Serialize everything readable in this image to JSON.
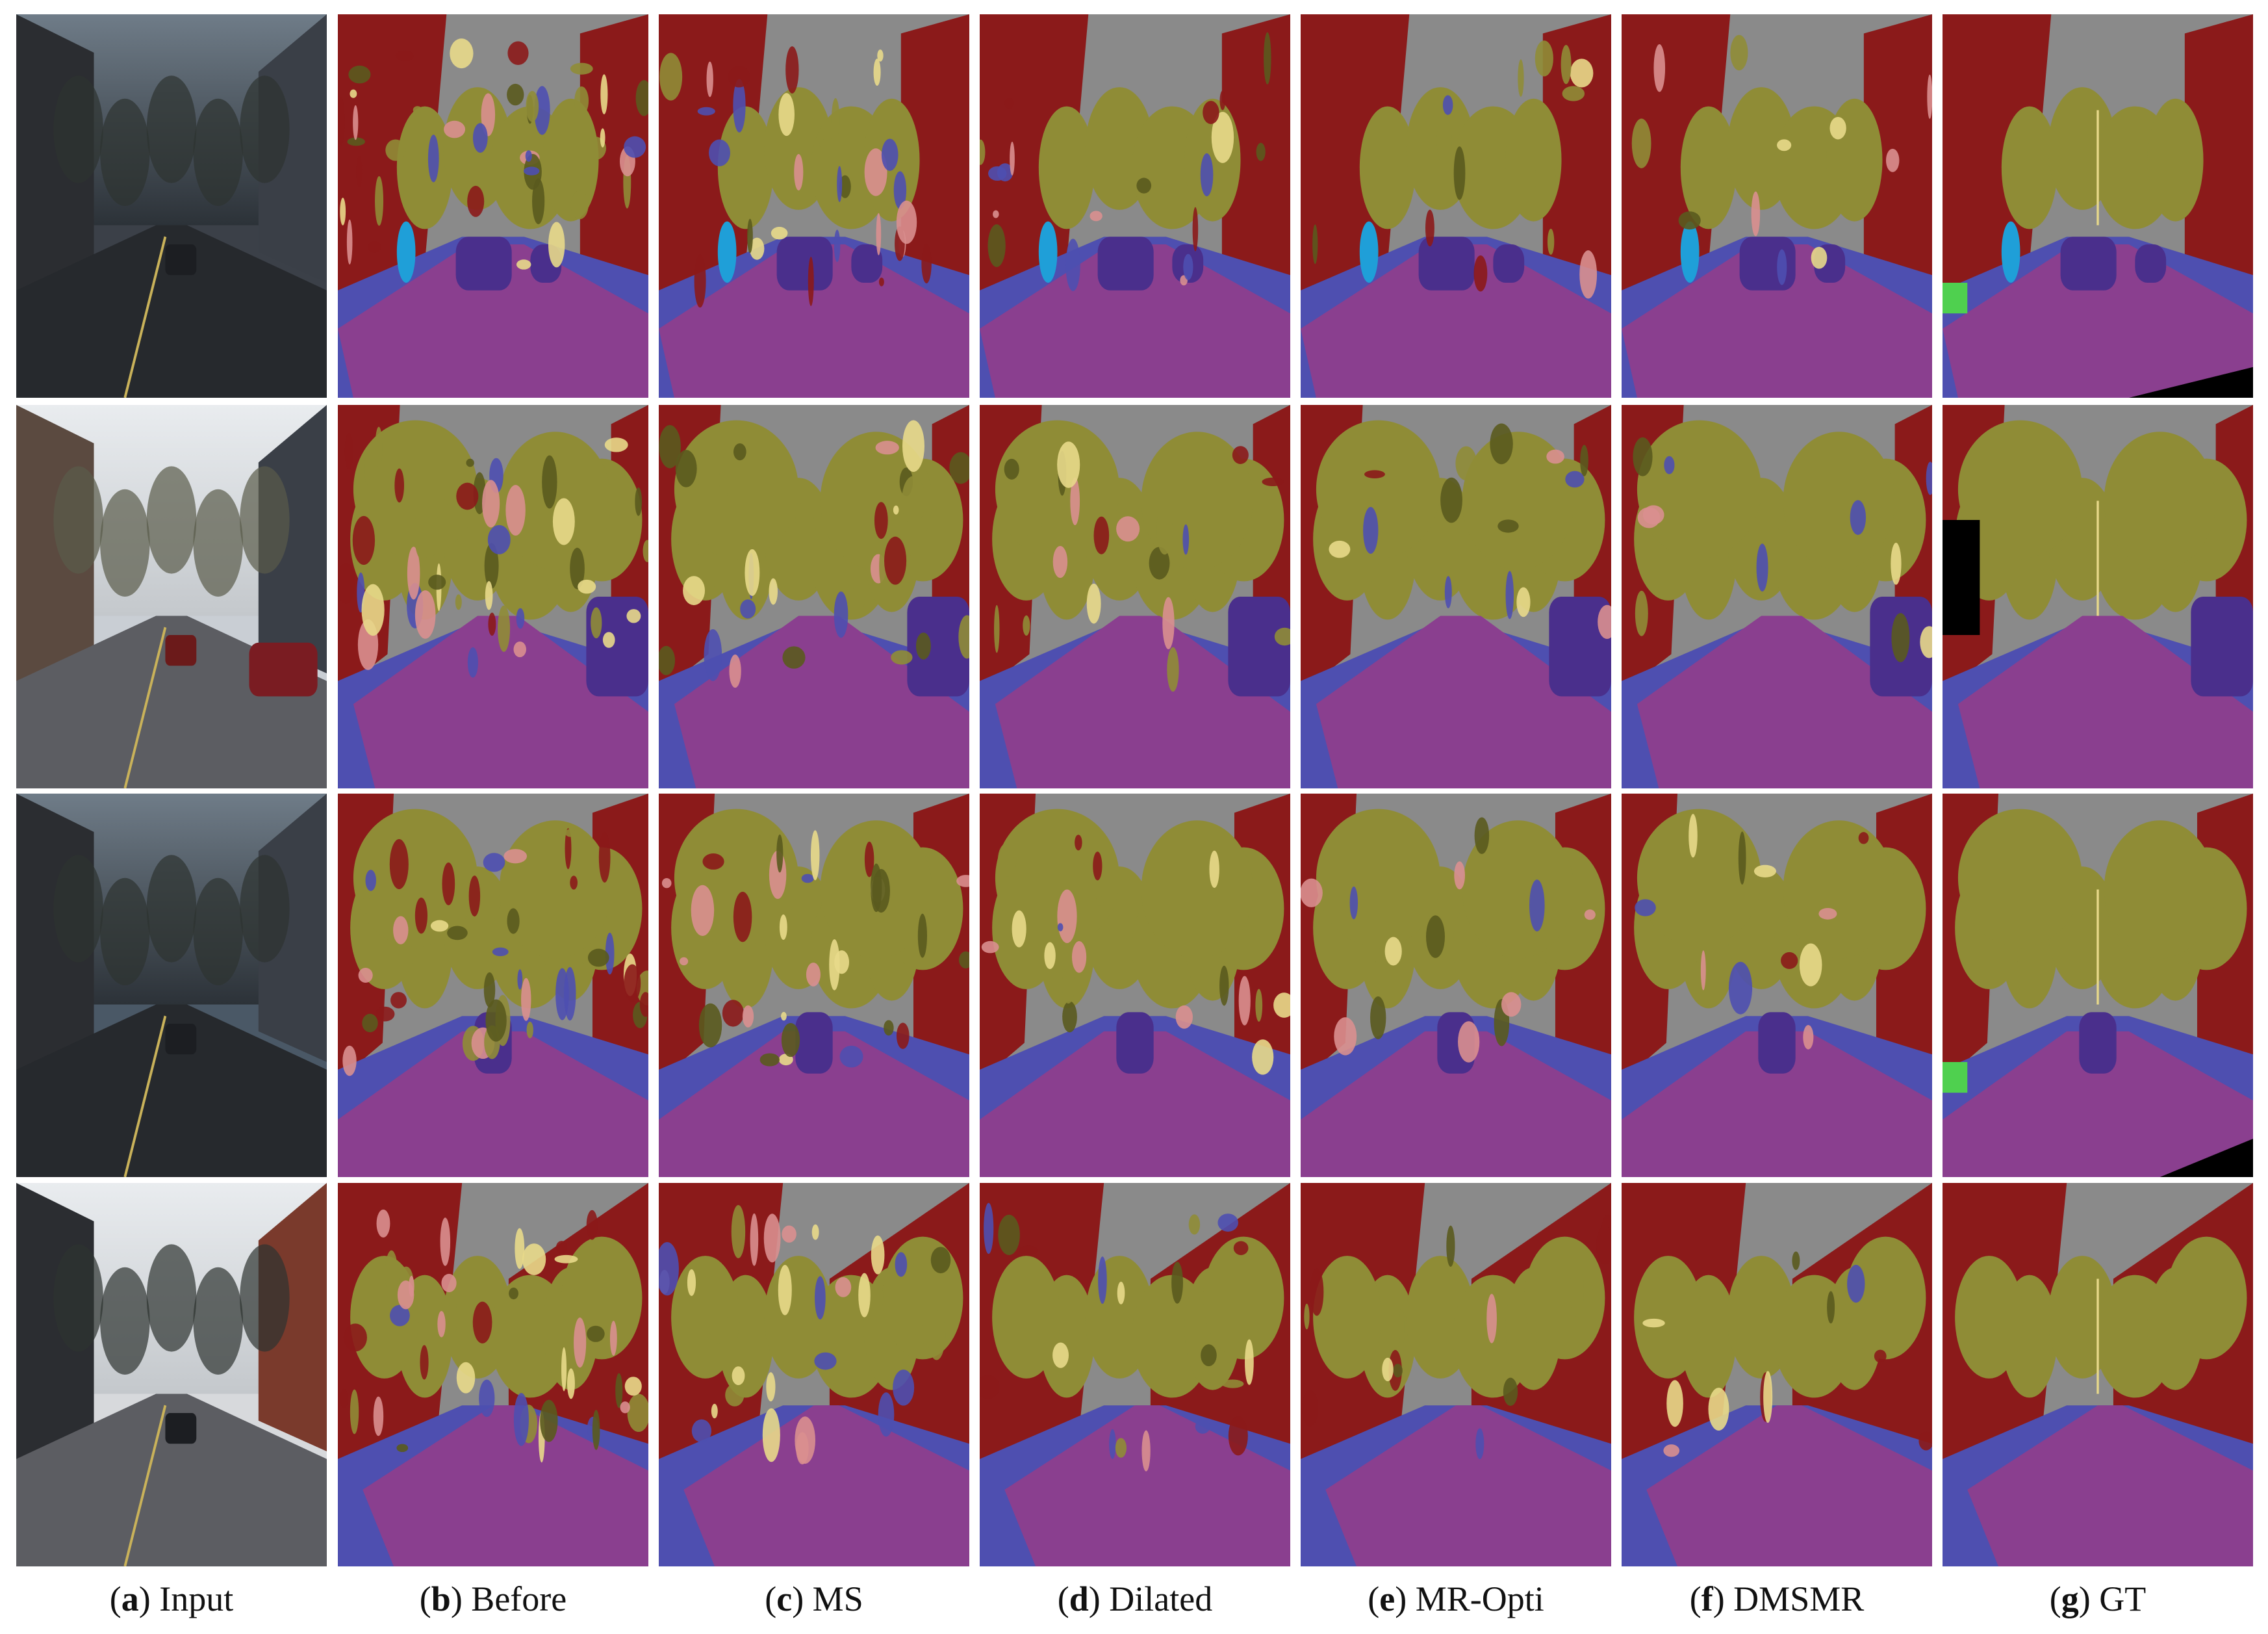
{
  "columns": [
    {
      "key": "input",
      "letter": "a",
      "label": "Input"
    },
    {
      "key": "before",
      "letter": "b",
      "label": "Before"
    },
    {
      "key": "ms",
      "letter": "c",
      "label": "MS"
    },
    {
      "key": "dilated",
      "letter": "d",
      "label": "Dilated"
    },
    {
      "key": "mropti",
      "letter": "e",
      "label": "MR-Opti"
    },
    {
      "key": "dmsmr",
      "letter": "f",
      "label": "DMSMR"
    },
    {
      "key": "gt",
      "letter": "g",
      "label": "GT"
    }
  ],
  "rows": [
    "street-scene-1",
    "street-scene-2",
    "street-scene-3",
    "street-scene-4"
  ],
  "palette": {
    "sky": "#8a8a8a",
    "building": "#8b1a1a",
    "tree": "#8f8c36",
    "road": "#8a3f8f",
    "sidewalk": "#4e4fb0",
    "car": "#4a2f8c",
    "pedestrian": "#1f9fd8",
    "sign": "#e8d98a",
    "fence": "#d98f8f",
    "pole": "#5a5a1e",
    "grass": "#4fd04f",
    "void": "#000000"
  }
}
